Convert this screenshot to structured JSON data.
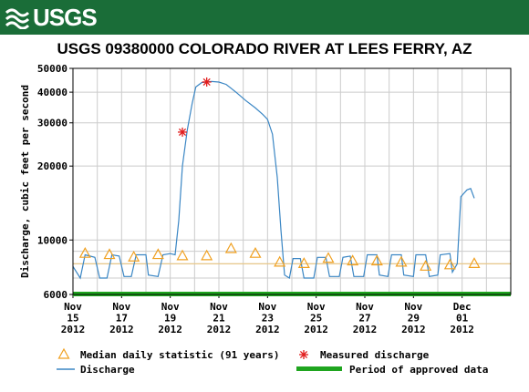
{
  "header": {
    "logo_text": "USGS"
  },
  "chart_data": {
    "type": "line",
    "title": "USGS 09380000 COLORADO RIVER AT LEES FERRY, AZ",
    "ylabel": "Discharge, cubic feet per second",
    "xlabel": "",
    "y_scale": "log",
    "ylim": [
      6000,
      50000
    ],
    "y_ticks": [
      6000,
      10000,
      20000,
      30000,
      40000,
      50000
    ],
    "y_tick_labels": [
      "6000",
      "10000",
      "20000",
      "30000",
      "40000",
      "50000"
    ],
    "x_range_days": [
      15,
      33
    ],
    "x_ticks": [
      {
        "day": 15,
        "label": [
          "Nov",
          "15",
          "2012"
        ]
      },
      {
        "day": 17,
        "label": [
          "Nov",
          "17",
          "2012"
        ]
      },
      {
        "day": 19,
        "label": [
          "Nov",
          "19",
          "2012"
        ]
      },
      {
        "day": 21,
        "label": [
          "Nov",
          "21",
          "2012"
        ]
      },
      {
        "day": 23,
        "label": [
          "Nov",
          "23",
          "2012"
        ]
      },
      {
        "day": 25,
        "label": [
          "Nov",
          "25",
          "2012"
        ]
      },
      {
        "day": 27,
        "label": [
          "Nov",
          "27",
          "2012"
        ]
      },
      {
        "day": 29,
        "label": [
          "Nov",
          "29",
          "2012"
        ]
      },
      {
        "day": 31,
        "label": [
          "Dec",
          "01",
          "2012"
        ]
      }
    ],
    "grid": true,
    "reference_line": 8000,
    "series": [
      {
        "name": "Discharge",
        "color": "#3a86c4",
        "kind": "line",
        "points": [
          [
            15.0,
            7800
          ],
          [
            15.3,
            7000
          ],
          [
            15.5,
            8700
          ],
          [
            15.9,
            8500
          ],
          [
            16.1,
            7000
          ],
          [
            16.4,
            7000
          ],
          [
            16.6,
            8700
          ],
          [
            16.9,
            8600
          ],
          [
            17.1,
            7100
          ],
          [
            17.4,
            7100
          ],
          [
            17.6,
            8700
          ],
          [
            18.0,
            8700
          ],
          [
            18.1,
            7200
          ],
          [
            18.5,
            7100
          ],
          [
            18.7,
            8700
          ],
          [
            19.0,
            8800
          ],
          [
            19.2,
            8700
          ],
          [
            19.35,
            12000
          ],
          [
            19.5,
            20000
          ],
          [
            19.7,
            28000
          ],
          [
            19.9,
            36000
          ],
          [
            20.05,
            42000
          ],
          [
            20.3,
            43800
          ],
          [
            20.7,
            44200
          ],
          [
            21.0,
            44000
          ],
          [
            21.3,
            43000
          ],
          [
            21.7,
            40000
          ],
          [
            22.1,
            37000
          ],
          [
            22.5,
            34500
          ],
          [
            22.8,
            32500
          ],
          [
            23.0,
            31000
          ],
          [
            23.2,
            27000
          ],
          [
            23.4,
            18000
          ],
          [
            23.55,
            11000
          ],
          [
            23.7,
            7200
          ],
          [
            23.9,
            7000
          ],
          [
            24.05,
            8400
          ],
          [
            24.35,
            8400
          ],
          [
            24.5,
            7000
          ],
          [
            24.9,
            7000
          ],
          [
            25.05,
            8500
          ],
          [
            25.4,
            8500
          ],
          [
            25.55,
            7100
          ],
          [
            25.95,
            7100
          ],
          [
            26.1,
            8500
          ],
          [
            26.4,
            8600
          ],
          [
            26.55,
            7100
          ],
          [
            26.95,
            7100
          ],
          [
            27.1,
            8700
          ],
          [
            27.5,
            8700
          ],
          [
            27.6,
            7200
          ],
          [
            27.95,
            7100
          ],
          [
            28.1,
            8700
          ],
          [
            28.5,
            8700
          ],
          [
            28.6,
            7200
          ],
          [
            29.0,
            7100
          ],
          [
            29.1,
            8700
          ],
          [
            29.5,
            8700
          ],
          [
            29.65,
            7100
          ],
          [
            30.0,
            7200
          ],
          [
            30.1,
            8700
          ],
          [
            30.5,
            8800
          ],
          [
            30.6,
            7400
          ],
          [
            30.8,
            8000
          ],
          [
            30.95,
            15000
          ],
          [
            31.2,
            16000
          ],
          [
            31.35,
            16200
          ],
          [
            31.5,
            14800
          ]
        ]
      },
      {
        "name": "Measured discharge",
        "color": "#e11b1b",
        "kind": "star",
        "points": [
          [
            19.5,
            27500
          ],
          [
            20.5,
            44000
          ]
        ]
      },
      {
        "name": "Median daily statistic (91 years)",
        "color": "#f0a020",
        "kind": "triangle",
        "points": [
          [
            15.5,
            8800
          ],
          [
            16.5,
            8700
          ],
          [
            17.5,
            8500
          ],
          [
            18.5,
            8700
          ],
          [
            19.5,
            8600
          ],
          [
            20.5,
            8600
          ],
          [
            21.5,
            9200
          ],
          [
            22.5,
            8800
          ],
          [
            23.5,
            8100
          ],
          [
            24.5,
            8000
          ],
          [
            25.5,
            8400
          ],
          [
            26.5,
            8200
          ],
          [
            27.5,
            8200
          ],
          [
            28.5,
            8100
          ],
          [
            29.5,
            7800
          ],
          [
            30.5,
            7900
          ],
          [
            31.5,
            8000
          ]
        ]
      },
      {
        "name": "Period of approved data",
        "color": "#1fa51f",
        "kind": "band"
      }
    ],
    "legend": [
      {
        "symbol": "triangle",
        "color": "#f0a020",
        "label": "Median daily statistic (91 years)"
      },
      {
        "symbol": "star",
        "color": "#e11b1b",
        "label": "Measured discharge"
      },
      {
        "symbol": "line",
        "color": "#3a86c4",
        "label": "Discharge"
      },
      {
        "symbol": "band",
        "color": "#1fa51f",
        "label": "Period of approved data"
      }
    ]
  }
}
